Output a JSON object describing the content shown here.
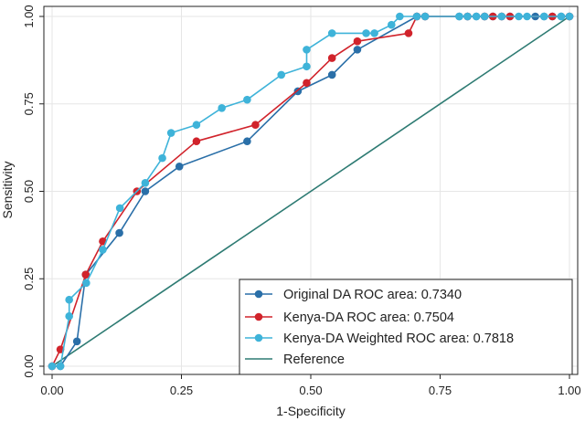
{
  "chart_data": {
    "type": "line",
    "title": "",
    "xlabel": "1-Specificity",
    "ylabel": "Sensitivity",
    "xlim": [
      0,
      1
    ],
    "ylim": [
      0,
      1
    ],
    "xticks": [
      "0.00",
      "0.25",
      "0.50",
      "0.75",
      "1.00"
    ],
    "yticks": [
      "0.00",
      "0.25",
      "0.50",
      "0.75",
      "1.00"
    ],
    "grid": true,
    "legend_position": "bottom-right",
    "series": [
      {
        "name": "Original DA ROC area: 0.7340",
        "color": "#2a6fa8",
        "markers": true,
        "points": [
          [
            0.0,
            0.0
          ],
          [
            0.016,
            0.0
          ],
          [
            0.048,
            0.071
          ],
          [
            0.065,
            0.262
          ],
          [
            0.13,
            0.381
          ],
          [
            0.18,
            0.5
          ],
          [
            0.246,
            0.571
          ],
          [
            0.377,
            0.643
          ],
          [
            0.475,
            0.786
          ],
          [
            0.541,
            0.833
          ],
          [
            0.59,
            0.905
          ],
          [
            0.705,
            1.0
          ],
          [
            0.721,
            1.0
          ],
          [
            0.787,
            1.0
          ],
          [
            0.803,
            1.0
          ],
          [
            0.82,
            1.0
          ],
          [
            0.836,
            1.0
          ],
          [
            0.852,
            1.0
          ],
          [
            0.869,
            1.0
          ],
          [
            0.885,
            1.0
          ],
          [
            0.934,
            1.0
          ],
          [
            0.951,
            1.0
          ],
          [
            0.967,
            1.0
          ],
          [
            0.984,
            1.0
          ],
          [
            1.0,
            1.0
          ]
        ]
      },
      {
        "name": "Kenya-DA ROC area: 0.7504",
        "color": "#d1232b",
        "markers": true,
        "points": [
          [
            0.0,
            0.0
          ],
          [
            0.016,
            0.048
          ],
          [
            0.065,
            0.262
          ],
          [
            0.098,
            0.357
          ],
          [
            0.164,
            0.5
          ],
          [
            0.279,
            0.643
          ],
          [
            0.393,
            0.69
          ],
          [
            0.492,
            0.81
          ],
          [
            0.541,
            0.881
          ],
          [
            0.59,
            0.929
          ],
          [
            0.689,
            0.952
          ],
          [
            0.705,
            1.0
          ],
          [
            0.721,
            1.0
          ],
          [
            0.803,
            1.0
          ],
          [
            0.836,
            1.0
          ],
          [
            0.852,
            1.0
          ],
          [
            0.869,
            1.0
          ],
          [
            0.885,
            1.0
          ],
          [
            0.967,
            1.0
          ],
          [
            1.0,
            1.0
          ]
        ]
      },
      {
        "name": "Kenya-DA Weighted ROC area: 0.7818",
        "color": "#3eb3d9",
        "markers": true,
        "points": [
          [
            0.0,
            0.0
          ],
          [
            0.016,
            0.0
          ],
          [
            0.033,
            0.143
          ],
          [
            0.033,
            0.19
          ],
          [
            0.066,
            0.238
          ],
          [
            0.098,
            0.333
          ],
          [
            0.131,
            0.452
          ],
          [
            0.18,
            0.524
          ],
          [
            0.213,
            0.595
          ],
          [
            0.23,
            0.667
          ],
          [
            0.279,
            0.69
          ],
          [
            0.328,
            0.738
          ],
          [
            0.377,
            0.762
          ],
          [
            0.443,
            0.833
          ],
          [
            0.492,
            0.857
          ],
          [
            0.492,
            0.905
          ],
          [
            0.541,
            0.952
          ],
          [
            0.607,
            0.952
          ],
          [
            0.623,
            0.952
          ],
          [
            0.656,
            0.976
          ],
          [
            0.672,
            1.0
          ],
          [
            0.705,
            1.0
          ],
          [
            0.721,
            1.0
          ],
          [
            0.787,
            1.0
          ],
          [
            0.803,
            1.0
          ],
          [
            0.82,
            1.0
          ],
          [
            0.836,
            1.0
          ],
          [
            0.869,
            1.0
          ],
          [
            0.902,
            1.0
          ],
          [
            0.918,
            1.0
          ],
          [
            0.951,
            1.0
          ],
          [
            0.984,
            1.0
          ],
          [
            1.0,
            1.0
          ]
        ]
      },
      {
        "name": "Reference",
        "color": "#2e7b73",
        "markers": false,
        "points": [
          [
            0,
            0
          ],
          [
            1,
            1
          ]
        ]
      }
    ]
  }
}
